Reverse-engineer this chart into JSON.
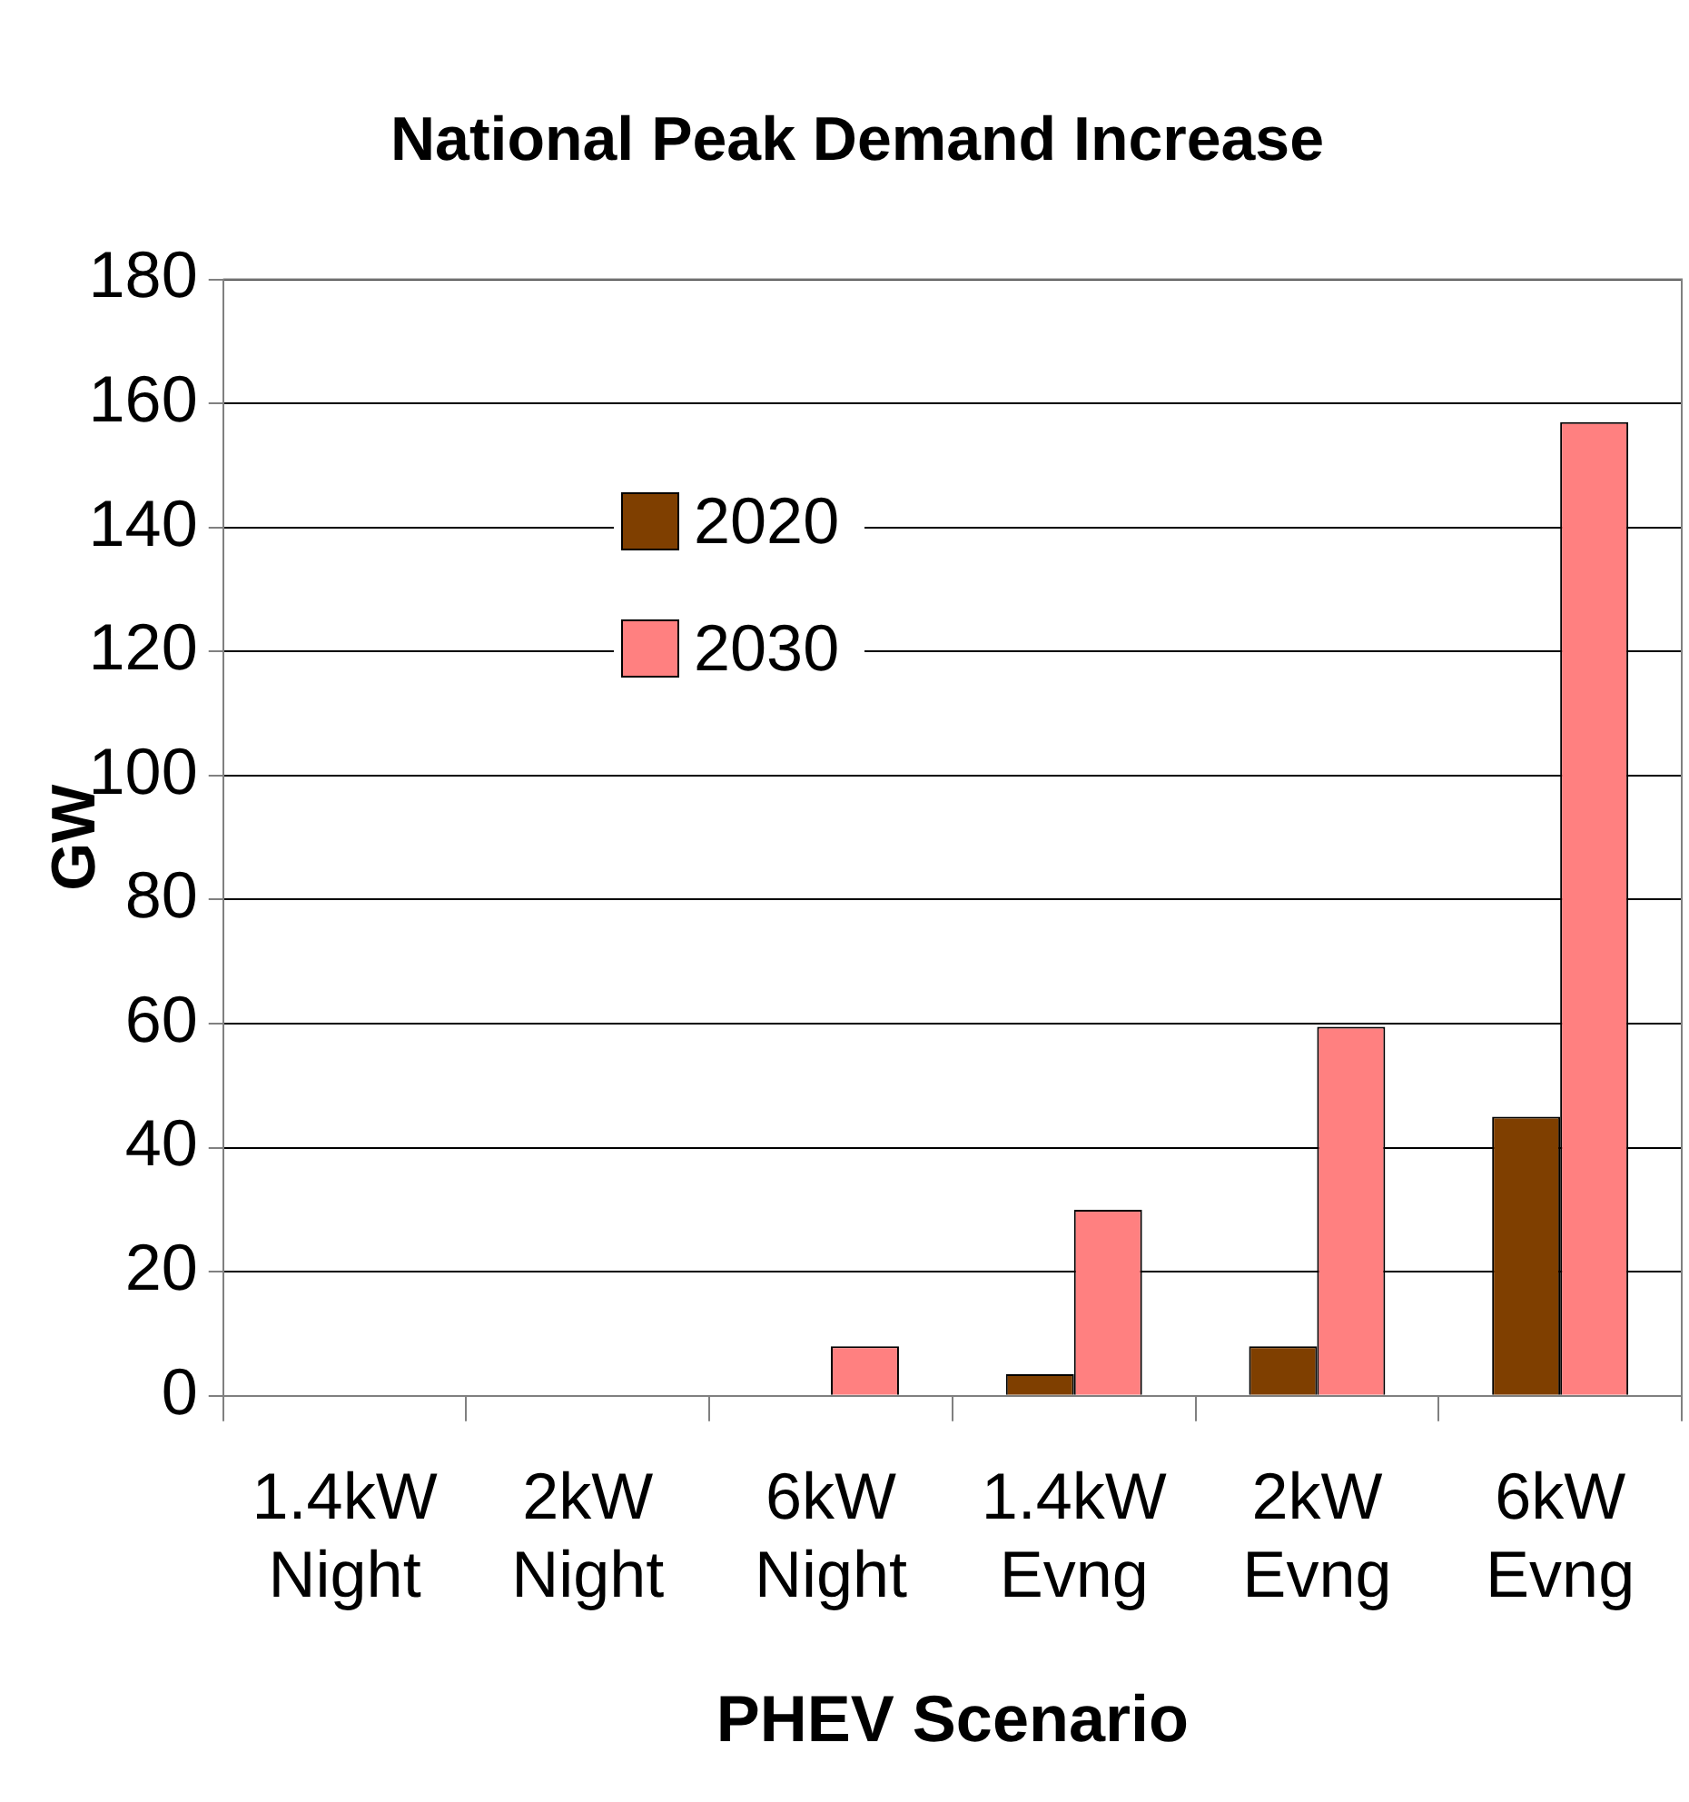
{
  "chart_data": {
    "type": "bar",
    "title": "National Peak Demand Increase",
    "xlabel": "PHEV Scenario",
    "ylabel": "GW",
    "categories": [
      "1.4kW Night",
      "2kW Night",
      "6kW Night",
      "1.4kW Evng",
      "2kW Evng",
      "6kW Evng"
    ],
    "series": [
      {
        "name": "2020",
        "color": "#7f3f00",
        "values": [
          0,
          0,
          0,
          3.5,
          8,
          45
        ]
      },
      {
        "name": "2030",
        "color": "#ff8080",
        "values": [
          0,
          0,
          8,
          30,
          59.5,
          157
        ]
      }
    ],
    "ylim": [
      0,
      180
    ],
    "yticks": [
      0,
      20,
      40,
      60,
      80,
      100,
      120,
      140,
      160,
      180
    ],
    "grid": "y",
    "legend": "top left"
  }
}
